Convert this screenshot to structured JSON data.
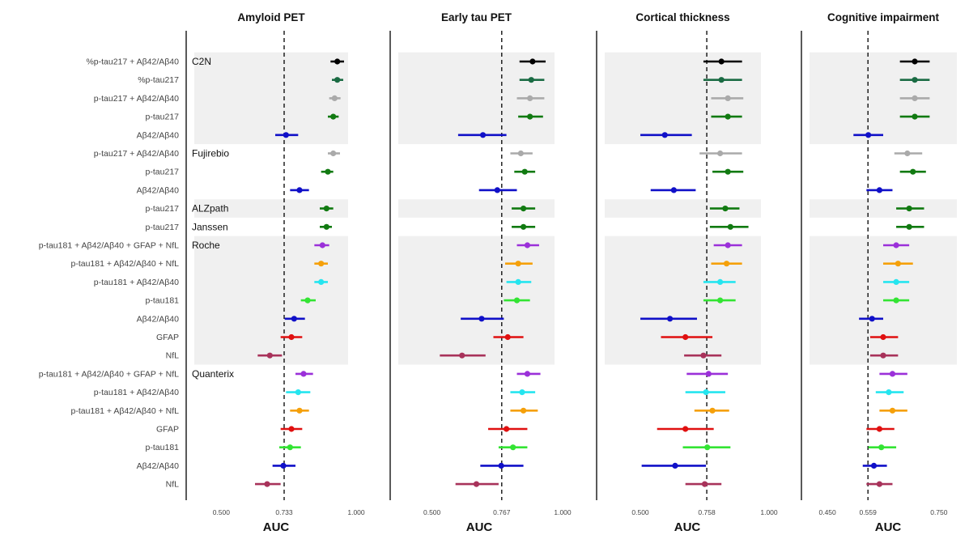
{
  "chart_data": {
    "type": "forest",
    "xlabel": "AUC",
    "colors": {
      "black": "#000000",
      "darkgreen": "#1a6b43",
      "gray": "#aaaaaa",
      "green": "#117a11",
      "blue": "#1010c8",
      "purple": "#9b30d9",
      "orange": "#f5a00a",
      "cyan": "#25e5ef",
      "lime": "#33e433",
      "red": "#e01010",
      "maroon": "#a8325a"
    },
    "rows": [
      {
        "label": "%p-tau217 + Aβ42/Aβ40",
        "group": "C2N",
        "color": "black"
      },
      {
        "label": "%p-tau217",
        "color": "darkgreen"
      },
      {
        "label": "p-tau217 + Aβ42/Aβ40",
        "color": "gray"
      },
      {
        "label": "p-tau217",
        "color": "green"
      },
      {
        "label": "Aβ42/Aβ40",
        "color": "blue"
      },
      {
        "label": "p-tau217 + Aβ42/Aβ40",
        "group": "Fujirebio",
        "color": "gray"
      },
      {
        "label": "p-tau217",
        "color": "green"
      },
      {
        "label": "Aβ42/Aβ40",
        "color": "blue"
      },
      {
        "label": "p-tau217",
        "group": "ALZpath",
        "color": "green"
      },
      {
        "label": "p-tau217",
        "group": "Janssen",
        "color": "green"
      },
      {
        "label": "p-tau181 + Aβ42/Aβ40 + GFAP + NfL",
        "group": "Roche",
        "color": "purple"
      },
      {
        "label": "p-tau181 + Aβ42/Aβ40 + NfL",
        "color": "orange"
      },
      {
        "label": "p-tau181 + Aβ42/Aβ40",
        "color": "cyan"
      },
      {
        "label": "p-tau181",
        "color": "lime"
      },
      {
        "label": "Aβ42/Aβ40",
        "color": "blue"
      },
      {
        "label": "GFAP",
        "color": "red"
      },
      {
        "label": "NfL",
        "color": "maroon"
      },
      {
        "label": "p-tau181 + Aβ42/Aβ40 + GFAP + NfL",
        "group": "Quanterix",
        "color": "purple"
      },
      {
        "label": "p-tau181 + Aβ42/Aβ40",
        "color": "cyan"
      },
      {
        "label": "p-tau181 + Aβ42/Aβ40 + NfL",
        "color": "orange"
      },
      {
        "label": "GFAP",
        "color": "red"
      },
      {
        "label": "p-tau181",
        "color": "lime"
      },
      {
        "label": "Aβ42/Aβ40",
        "color": "blue"
      },
      {
        "label": "NfL",
        "color": "maroon"
      }
    ],
    "shaded_row_blocks": [
      [
        0,
        4
      ],
      [
        8,
        8
      ],
      [
        10,
        16
      ]
    ],
    "panels": [
      {
        "title": "Amyloid PET",
        "xlim": [
          0.37,
          1.0
        ],
        "ticks": [
          0.5,
          0.733,
          1.0
        ],
        "tick_labels": [
          "0.500",
          "0.733",
          "1.000"
        ],
        "reference": 0.733,
        "estimates": [
          [
            0.93,
            0.905,
            0.955
          ],
          [
            0.93,
            0.91,
            0.952
          ],
          [
            0.92,
            0.9,
            0.942
          ],
          [
            0.915,
            0.895,
            0.935
          ],
          [
            0.74,
            0.7,
            0.785
          ],
          [
            0.915,
            0.895,
            0.94
          ],
          [
            0.895,
            0.87,
            0.915
          ],
          [
            0.79,
            0.755,
            0.825
          ],
          [
            0.89,
            0.865,
            0.915
          ],
          [
            0.89,
            0.865,
            0.91
          ],
          [
            0.875,
            0.845,
            0.9
          ],
          [
            0.87,
            0.845,
            0.895
          ],
          [
            0.87,
            0.845,
            0.895
          ],
          [
            0.82,
            0.795,
            0.85
          ],
          [
            0.77,
            0.735,
            0.81
          ],
          [
            0.76,
            0.72,
            0.8
          ],
          [
            0.68,
            0.635,
            0.725
          ],
          [
            0.805,
            0.775,
            0.84
          ],
          [
            0.785,
            0.74,
            0.83
          ],
          [
            0.79,
            0.755,
            0.825
          ],
          [
            0.76,
            0.72,
            0.8
          ],
          [
            0.755,
            0.715,
            0.795
          ],
          [
            0.73,
            0.69,
            0.775
          ],
          [
            0.67,
            0.625,
            0.72
          ]
        ]
      },
      {
        "title": "Early tau PET",
        "xlim": [
          0.34,
          1.0
        ],
        "ticks": [
          0.5,
          0.767,
          1.0
        ],
        "tick_labels": [
          "0.500",
          "0.767",
          "1.000"
        ],
        "reference": 0.767,
        "estimates": [
          [
            0.885,
            0.835,
            0.935
          ],
          [
            0.88,
            0.835,
            0.93
          ],
          [
            0.875,
            0.825,
            0.93
          ],
          [
            0.875,
            0.83,
            0.925
          ],
          [
            0.695,
            0.6,
            0.785
          ],
          [
            0.84,
            0.8,
            0.885
          ],
          [
            0.855,
            0.815,
            0.895
          ],
          [
            0.75,
            0.68,
            0.825
          ],
          [
            0.85,
            0.805,
            0.895
          ],
          [
            0.85,
            0.805,
            0.895
          ],
          [
            0.865,
            0.825,
            0.91
          ],
          [
            0.83,
            0.78,
            0.885
          ],
          [
            0.83,
            0.785,
            0.88
          ],
          [
            0.825,
            0.775,
            0.875
          ],
          [
            0.69,
            0.61,
            0.775
          ],
          [
            0.79,
            0.735,
            0.85
          ],
          [
            0.615,
            0.53,
            0.705
          ],
          [
            0.865,
            0.825,
            0.915
          ],
          [
            0.845,
            0.8,
            0.895
          ],
          [
            0.85,
            0.8,
            0.905
          ],
          [
            0.785,
            0.715,
            0.865
          ],
          [
            0.81,
            0.755,
            0.865
          ],
          [
            0.765,
            0.685,
            0.85
          ],
          [
            0.67,
            0.59,
            0.755
          ]
        ]
      },
      {
        "title": "Cortical thickness",
        "xlim": [
          0.33,
          1.0
        ],
        "ticks": [
          0.5,
          0.758,
          1.0
        ],
        "tick_labels": [
          "0.500",
          "0.758",
          "1.000"
        ],
        "reference": 0.758,
        "estimates": [
          [
            0.815,
            0.745,
            0.895
          ],
          [
            0.815,
            0.745,
            0.895
          ],
          [
            0.84,
            0.775,
            0.9
          ],
          [
            0.84,
            0.775,
            0.895
          ],
          [
            0.595,
            0.5,
            0.7
          ],
          [
            0.81,
            0.73,
            0.895
          ],
          [
            0.84,
            0.78,
            0.9
          ],
          [
            0.63,
            0.54,
            0.715
          ],
          [
            0.83,
            0.77,
            0.885
          ],
          [
            0.85,
            0.77,
            0.92
          ],
          [
            0.84,
            0.785,
            0.895
          ],
          [
            0.835,
            0.775,
            0.895
          ],
          [
            0.81,
            0.745,
            0.87
          ],
          [
            0.81,
            0.745,
            0.87
          ],
          [
            0.615,
            0.5,
            0.72
          ],
          [
            0.675,
            0.58,
            0.78
          ],
          [
            0.745,
            0.67,
            0.815
          ],
          [
            0.765,
            0.68,
            0.84
          ],
          [
            0.755,
            0.675,
            0.83
          ],
          [
            0.78,
            0.71,
            0.845
          ],
          [
            0.675,
            0.565,
            0.785
          ],
          [
            0.76,
            0.665,
            0.85
          ],
          [
            0.635,
            0.505,
            0.755
          ],
          [
            0.75,
            0.675,
            0.815
          ]
        ]
      },
      {
        "title": "Cognitive impairment",
        "xlim": [
          0.38,
          0.82
        ],
        "ticks": [
          0.45,
          0.559,
          0.75
        ],
        "tick_labels": [
          "0.450",
          "0.559",
          "0.750"
        ],
        "reference": 0.559,
        "estimates": [
          [
            0.685,
            0.645,
            0.725
          ],
          [
            0.685,
            0.645,
            0.725
          ],
          [
            0.685,
            0.645,
            0.725
          ],
          [
            0.685,
            0.645,
            0.725
          ],
          [
            0.56,
            0.52,
            0.6
          ],
          [
            0.665,
            0.63,
            0.705
          ],
          [
            0.68,
            0.645,
            0.715
          ],
          [
            0.59,
            0.555,
            0.625
          ],
          [
            0.67,
            0.635,
            0.71
          ],
          [
            0.67,
            0.635,
            0.71
          ],
          [
            0.635,
            0.6,
            0.67
          ],
          [
            0.64,
            0.6,
            0.68
          ],
          [
            0.635,
            0.6,
            0.67
          ],
          [
            0.635,
            0.6,
            0.67
          ],
          [
            0.57,
            0.535,
            0.6
          ],
          [
            0.6,
            0.565,
            0.64
          ],
          [
            0.6,
            0.565,
            0.64
          ],
          [
            0.625,
            0.59,
            0.665
          ],
          [
            0.615,
            0.58,
            0.655
          ],
          [
            0.625,
            0.59,
            0.665
          ],
          [
            0.59,
            0.555,
            0.63
          ],
          [
            0.595,
            0.56,
            0.635
          ],
          [
            0.575,
            0.545,
            0.61
          ],
          [
            0.59,
            0.555,
            0.625
          ]
        ]
      }
    ]
  }
}
